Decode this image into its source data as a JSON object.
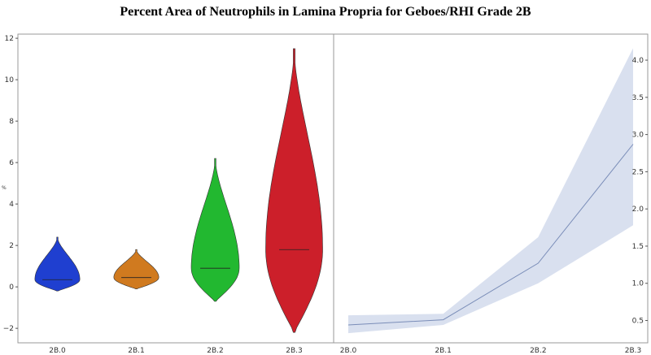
{
  "chart_data": [
    {
      "type": "violin",
      "title": "Percent Area of Neutrophils  in Lamina Propria  for Geboes/RHI Grade 2B",
      "ylabel": "%",
      "xlabel": "",
      "categories": [
        "2B.0",
        "2B.1",
        "2B.2",
        "2B.3"
      ],
      "ylim": [
        -2.7,
        12.2
      ],
      "yticks": [
        -2,
        0,
        2,
        4,
        6,
        8,
        10,
        12
      ],
      "colors": [
        "#1f3fd0",
        "#d07a1f",
        "#22b830",
        "#cc1f2a"
      ],
      "distributions": [
        {
          "min": -0.2,
          "max": 2.4,
          "bulge": 0.35,
          "median": 0.35
        },
        {
          "min": -0.1,
          "max": 1.8,
          "bulge": 0.45,
          "median": 0.45
        },
        {
          "min": -0.7,
          "max": 6.2,
          "bulge": 0.9,
          "median": 0.9
        },
        {
          "min": -2.2,
          "max": 11.5,
          "bulge": 1.8,
          "median": 1.8
        }
      ]
    },
    {
      "type": "line",
      "categories": [
        "2B.0",
        "2B.1",
        "2B.2",
        "2B.3"
      ],
      "mean": [
        0.44,
        0.51,
        1.27,
        2.87
      ],
      "ci_lower": [
        0.33,
        0.44,
        1.0,
        1.78
      ],
      "ci_upper": [
        0.57,
        0.59,
        1.62,
        4.16
      ],
      "ylim": [
        0.2,
        4.35
      ],
      "yticks": [
        0.5,
        1.0,
        1.5,
        2.0,
        2.5,
        3.0,
        3.5,
        4.0
      ],
      "line_color": "#7a8db8",
      "band_color": "#ccd6ea"
    }
  ]
}
